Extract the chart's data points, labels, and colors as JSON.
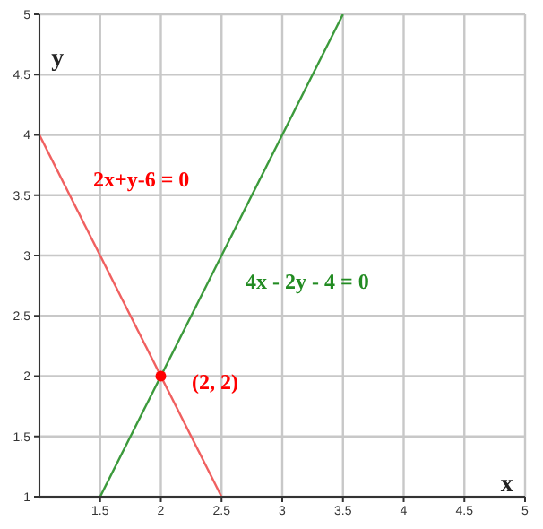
{
  "chart_data": {
    "type": "line",
    "xlabel": "x",
    "ylabel": "y",
    "series": [
      {
        "color": "#f06060",
        "x": [
          1,
          2.5
        ],
        "values": [
          4,
          1
        ]
      },
      {
        "color": "#3c9a3c",
        "x": [
          1.5,
          3.5
        ],
        "values": [
          1,
          5
        ]
      },
      {
        "type": "scatter",
        "color": "#ff0000",
        "marker": "circle",
        "x": [
          2
        ],
        "values": [
          2
        ]
      }
    ],
    "annotations": [
      "2x+y-6 = 0",
      "4x - 2y - 4 = 0",
      "(2, 2)"
    ],
    "xlim": [
      1,
      5
    ],
    "xticks": [
      1.5,
      2,
      2.5,
      3,
      3.5,
      4,
      4.5,
      5
    ],
    "ylim": [
      1,
      5
    ],
    "yticks": [
      1,
      1.5,
      2,
      2.5,
      3,
      3.5,
      4,
      4.5,
      5
    ],
    "grid": true,
    "line_style": "solid"
  }
}
